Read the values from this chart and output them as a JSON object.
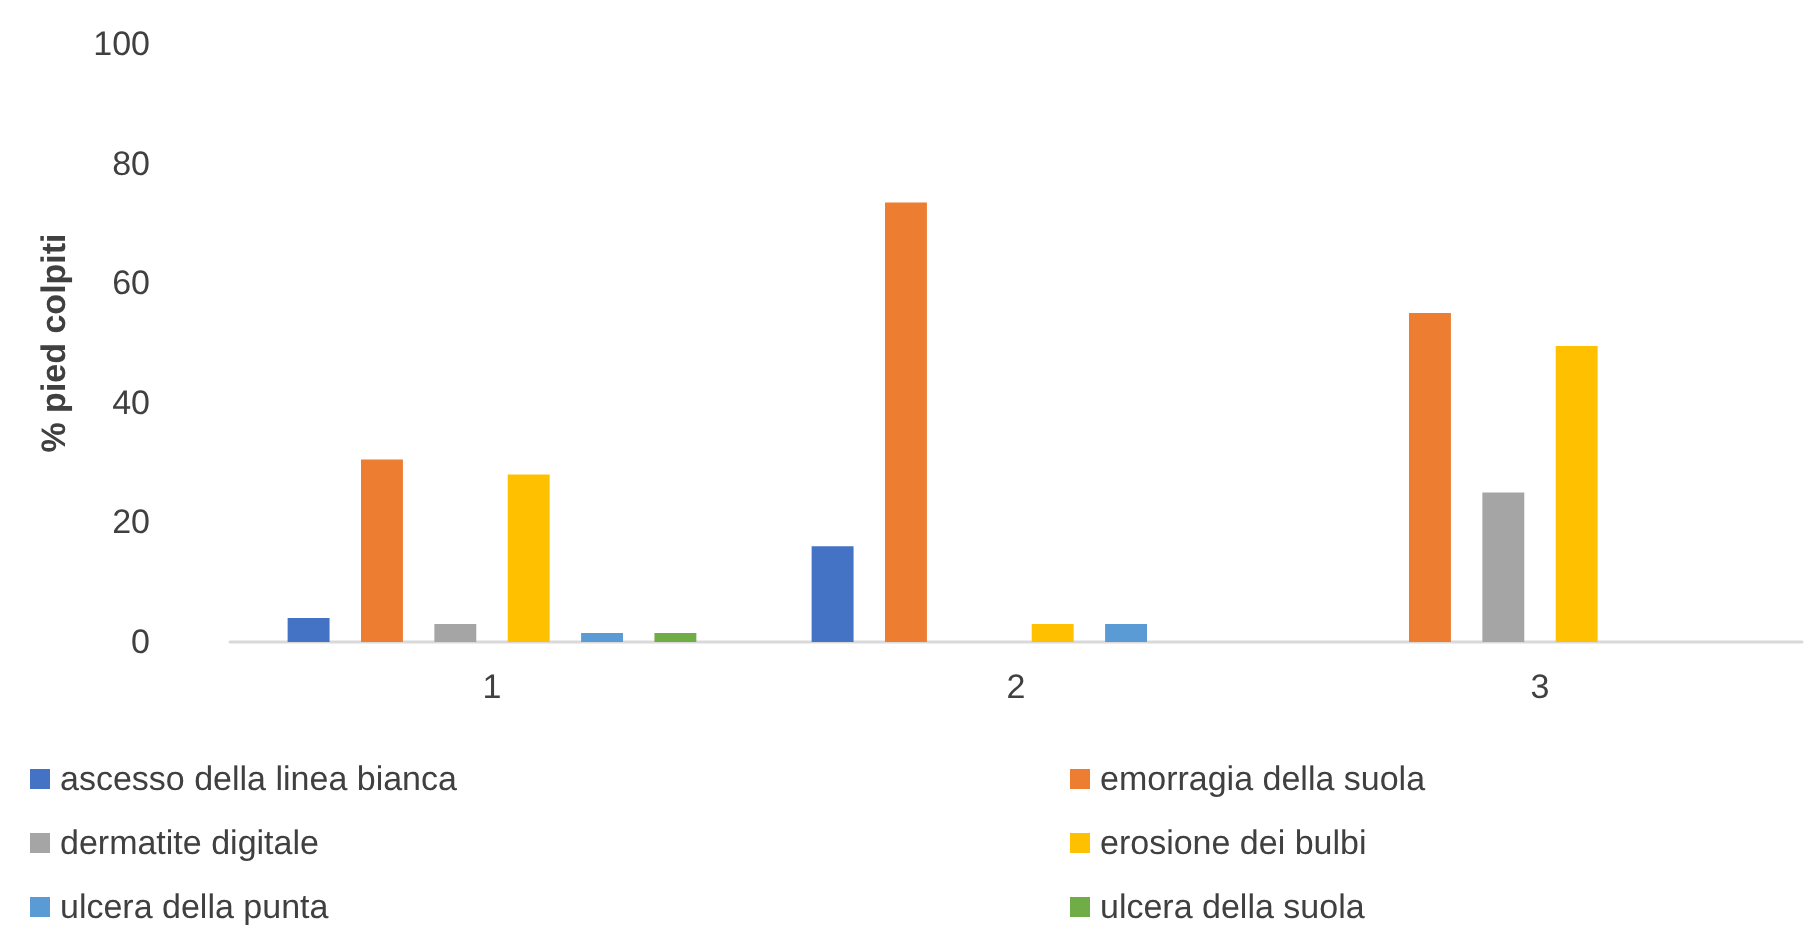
{
  "chart_data": {
    "type": "bar",
    "ylabel": "% pied colpiti",
    "categories": [
      "1",
      "2",
      "3"
    ],
    "series": [
      {
        "name": "ascesso della linea bianca",
        "color": "#4472c4",
        "values": [
          4,
          16,
          0
        ]
      },
      {
        "name": "emorragia della suola",
        "color": "#ed7d31",
        "values": [
          30.5,
          73.5,
          55
        ]
      },
      {
        "name": "dermatite digitale",
        "color": "#a5a5a5",
        "values": [
          3,
          0,
          25
        ]
      },
      {
        "name": "erosione dei bulbi",
        "color": "#ffc000",
        "values": [
          28,
          3,
          49.5
        ]
      },
      {
        "name": "ulcera della punta",
        "color": "#5b9bd5",
        "values": [
          1.5,
          3,
          0
        ]
      },
      {
        "name": "ulcera della suola",
        "color": "#70ad47",
        "values": [
          1.5,
          0,
          0
        ]
      }
    ],
    "ylim": [
      0,
      100
    ],
    "yticks": [
      0,
      20,
      40,
      60,
      80,
      100
    ],
    "grid": false,
    "legend": "bottom"
  }
}
